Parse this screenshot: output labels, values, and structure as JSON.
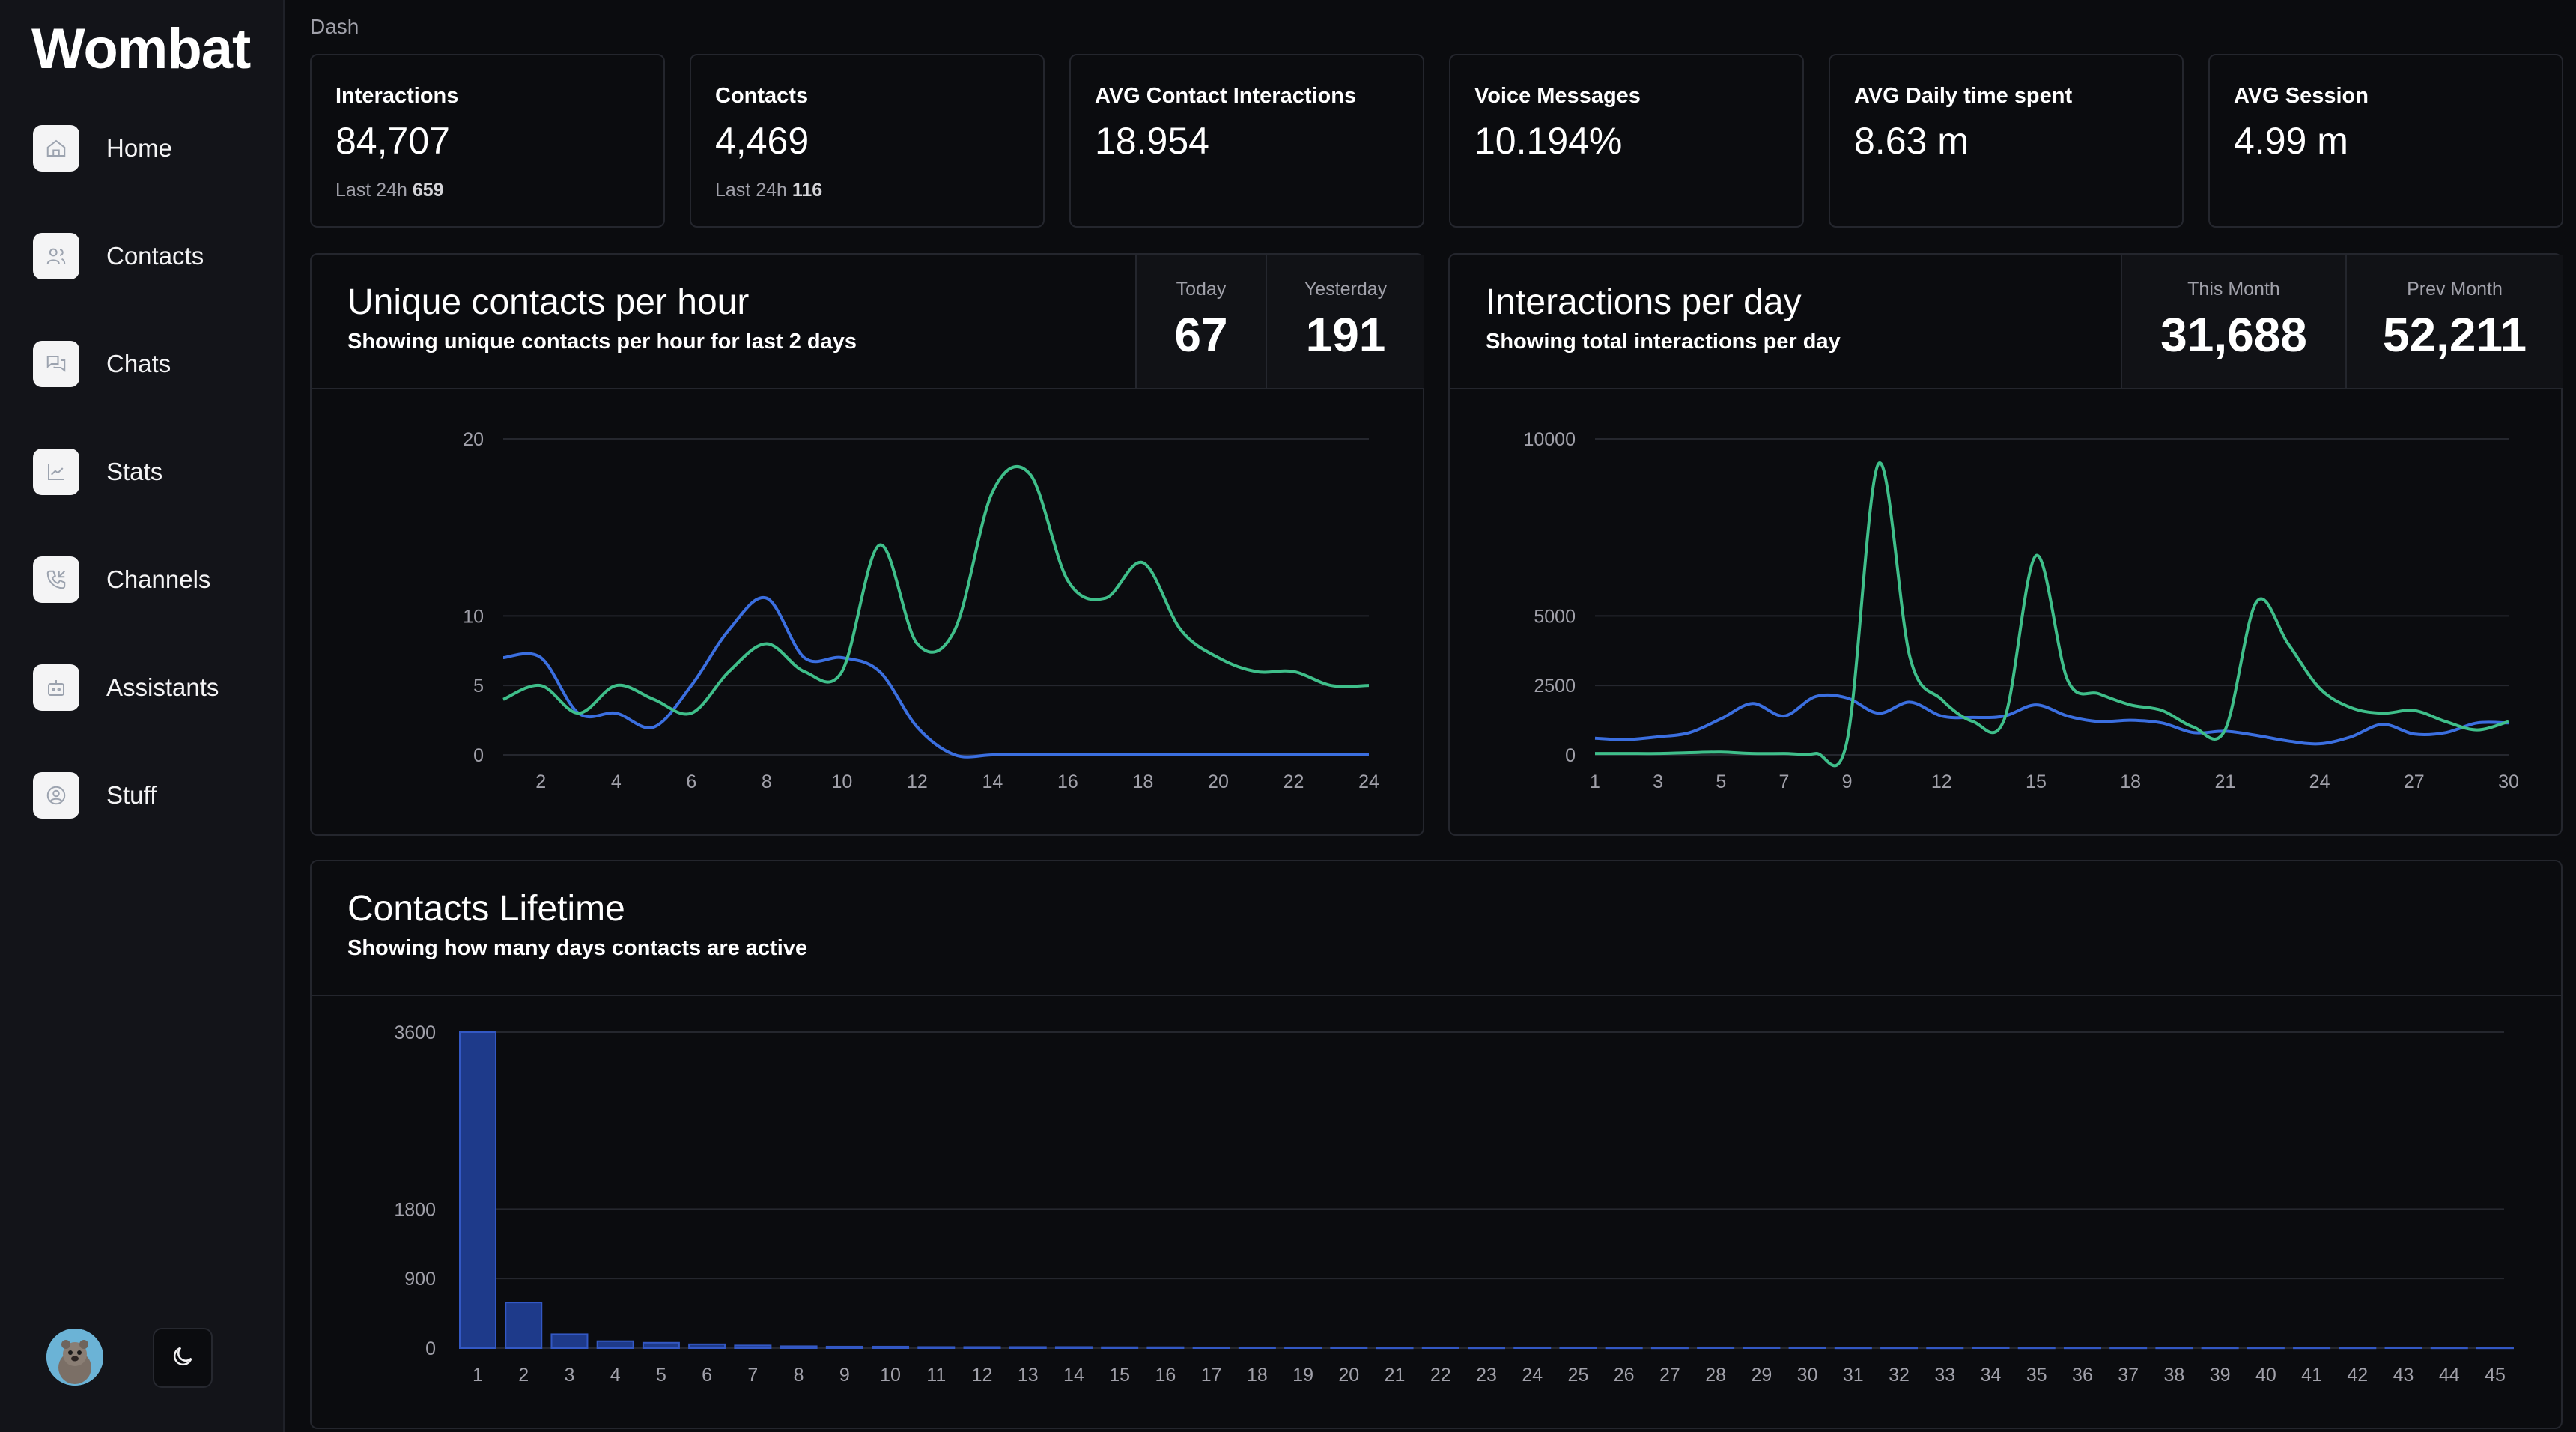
{
  "app": {
    "brand": "Wombat",
    "breadcrumb": "Dash"
  },
  "sidebar": {
    "items": [
      {
        "label": "Home",
        "icon": "home-icon"
      },
      {
        "label": "Contacts",
        "icon": "users-icon"
      },
      {
        "label": "Chats",
        "icon": "chat-icon"
      },
      {
        "label": "Stats",
        "icon": "chart-icon"
      },
      {
        "label": "Channels",
        "icon": "phone-icon"
      },
      {
        "label": "Assistants",
        "icon": "bot-icon"
      },
      {
        "label": "Stuff",
        "icon": "user-circle-icon"
      }
    ]
  },
  "stats": [
    {
      "label": "Interactions",
      "value": "84,707",
      "sub_label": "Last 24h",
      "sub_value": "659"
    },
    {
      "label": "Contacts",
      "value": "4,469",
      "sub_label": "Last 24h",
      "sub_value": "116"
    },
    {
      "label": "AVG Contact Interactions",
      "value": "18.954"
    },
    {
      "label": "Voice Messages",
      "value": "10.194%"
    },
    {
      "label": "AVG Daily time spent",
      "value": "8.63 m"
    },
    {
      "label": "AVG Session",
      "value": "4.99 m"
    }
  ],
  "colors": {
    "green": "#3fbf8a",
    "blue": "#3b6fe0",
    "bar": "#1e3a8a",
    "bar_stroke": "#3358c4",
    "grid": "#25272e",
    "tick": "#a1a1aa"
  },
  "unique_contacts": {
    "title": "Unique contacts per hour",
    "description": "Showing unique contacts per hour for last 2 days",
    "kpis": [
      {
        "label": "Today",
        "value": "67"
      },
      {
        "label": "Yesterday",
        "value": "191"
      }
    ]
  },
  "interactions_day": {
    "title": "Interactions per day",
    "description": "Showing total interactions per day",
    "kpis": [
      {
        "label": "This Month",
        "value": "31,688"
      },
      {
        "label": "Prev Month",
        "value": "52,211"
      }
    ]
  },
  "lifetime": {
    "title": "Contacts Lifetime",
    "description": "Showing how many days contacts are active"
  },
  "chart_data": [
    {
      "type": "line",
      "title": "Unique contacts per hour",
      "x": [
        1,
        2,
        3,
        4,
        5,
        6,
        7,
        8,
        9,
        10,
        11,
        12,
        13,
        14,
        15,
        16,
        17,
        18,
        19,
        20,
        21,
        22,
        23,
        24
      ],
      "xticks": [
        2,
        4,
        6,
        8,
        10,
        12,
        14,
        16,
        18,
        20,
        22,
        24
      ],
      "yticks": [
        0,
        5,
        10,
        20
      ],
      "ylim": [
        0,
        20
      ],
      "series": [
        {
          "values": [
            7,
            7,
            3,
            3,
            2,
            5,
            9,
            11,
            7,
            7,
            6,
            2,
            0,
            0,
            0,
            0,
            0,
            0,
            0,
            0,
            0,
            0,
            0,
            0
          ]
        },
        {
          "values": [
            4,
            5,
            3,
            5,
            4,
            3,
            6,
            8,
            6,
            6,
            14,
            8,
            9,
            17,
            18,
            12,
            11,
            13,
            9,
            7,
            6,
            6,
            5,
            5
          ]
        }
      ],
      "grid": true
    },
    {
      "type": "line",
      "title": "Interactions per day",
      "x": [
        1,
        2,
        3,
        4,
        5,
        6,
        7,
        8,
        9,
        10,
        11,
        12,
        13,
        14,
        15,
        16,
        17,
        18,
        19,
        20,
        21,
        22,
        23,
        24,
        25,
        26,
        27,
        28,
        29,
        30
      ],
      "xticks": [
        1,
        3,
        5,
        7,
        9,
        12,
        15,
        18,
        21,
        24,
        27,
        30
      ],
      "yticks": [
        0,
        2500,
        5000,
        10000
      ],
      "ylim": [
        0,
        10000
      ],
      "series": [
        {
          "values": [
            600,
            550,
            650,
            800,
            1300,
            1850,
            1400,
            2100,
            2050,
            1500,
            1900,
            1400,
            1350,
            1400,
            1800,
            1400,
            1200,
            1250,
            1150,
            800,
            850,
            700,
            500,
            400,
            650,
            1100,
            750,
            800,
            1150,
            1150
          ]
        },
        {
          "values": [
            50,
            50,
            50,
            80,
            100,
            50,
            50,
            50,
            500,
            9300,
            3500,
            2000,
            1200,
            1300,
            6700,
            2700,
            2200,
            1800,
            1600,
            1000,
            900,
            5400,
            4000,
            2400,
            1700,
            1500,
            1600,
            1200,
            900,
            1200
          ]
        }
      ],
      "grid": true
    },
    {
      "type": "bar",
      "title": "Contacts Lifetime",
      "categories": [
        "1",
        "2",
        "3",
        "4",
        "5",
        "6",
        "7",
        "8",
        "9",
        "10",
        "11",
        "12",
        "13",
        "14",
        "15",
        "16",
        "17",
        "18",
        "19",
        "20",
        "21",
        "22",
        "23",
        "24",
        "25",
        "26",
        "27",
        "28",
        "29",
        "30",
        "31",
        "32",
        "33",
        "34",
        "35",
        "36",
        "37",
        "38",
        "39",
        "40",
        "41",
        "42",
        "43",
        "44",
        "45"
      ],
      "values": [
        3600,
        590,
        180,
        90,
        70,
        50,
        35,
        25,
        20,
        20,
        15,
        15,
        15,
        15,
        12,
        12,
        10,
        10,
        10,
        10,
        8,
        10,
        8,
        10,
        10,
        8,
        8,
        10,
        10,
        10,
        8,
        8,
        8,
        10,
        8,
        8,
        8,
        8,
        8,
        8,
        8,
        8,
        10,
        8,
        8
      ],
      "yticks": [
        0,
        900,
        1800,
        3600
      ],
      "ylim": [
        0,
        3600
      ],
      "grid": true
    }
  ]
}
